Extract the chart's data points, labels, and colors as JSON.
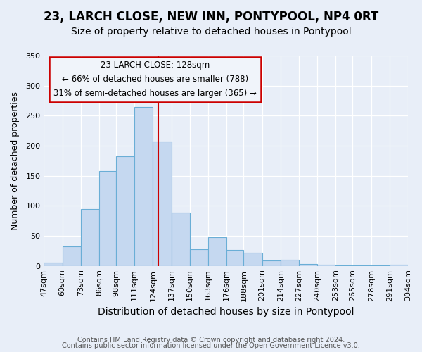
{
  "title": "23, LARCH CLOSE, NEW INN, PONTYPOOL, NP4 0RT",
  "subtitle": "Size of property relative to detached houses in Pontypool",
  "xlabel": "Distribution of detached houses by size in Pontypool",
  "ylabel": "Number of detached properties",
  "bar_heights": [
    6,
    32,
    95,
    158,
    183,
    265,
    207,
    89,
    28,
    48,
    27,
    22,
    9,
    10,
    3,
    2,
    1,
    1,
    1,
    2
  ],
  "bin_edges": [
    47,
    60,
    73,
    86,
    98,
    111,
    124,
    137,
    150,
    163,
    176,
    188,
    201,
    214,
    227,
    240,
    253,
    265,
    278,
    291,
    304
  ],
  "bin_labels": [
    "47sqm",
    "60sqm",
    "73sqm",
    "86sqm",
    "98sqm",
    "111sqm",
    "124sqm",
    "137sqm",
    "150sqm",
    "163sqm",
    "176sqm",
    "188sqm",
    "201sqm",
    "214sqm",
    "227sqm",
    "240sqm",
    "253sqm",
    "265sqm",
    "278sqm",
    "291sqm",
    "304sqm"
  ],
  "bar_color": "#c5d8f0",
  "bar_edge_color": "#6aaed6",
  "vline_x": 128,
  "vline_color": "#cc0000",
  "annotation_title": "23 LARCH CLOSE: 128sqm",
  "annotation_line1": "← 66% of detached houses are smaller (788)",
  "annotation_line2": "31% of semi-detached houses are larger (365) →",
  "annotation_box_color": "#cc0000",
  "annotation_bg_color": "#f0f4fa",
  "ylim": [
    0,
    350
  ],
  "yticks": [
    0,
    50,
    100,
    150,
    200,
    250,
    300,
    350
  ],
  "background_color": "#e8eef8",
  "grid_color": "#ffffff",
  "footer1": "Contains HM Land Registry data © Crown copyright and database right 2024.",
  "footer2": "Contains public sector information licensed under the Open Government Licence v3.0.",
  "title_fontsize": 12,
  "subtitle_fontsize": 10,
  "xlabel_fontsize": 10,
  "ylabel_fontsize": 9,
  "tick_fontsize": 8,
  "footer_fontsize": 7,
  "annotation_fontsize": 8.5
}
